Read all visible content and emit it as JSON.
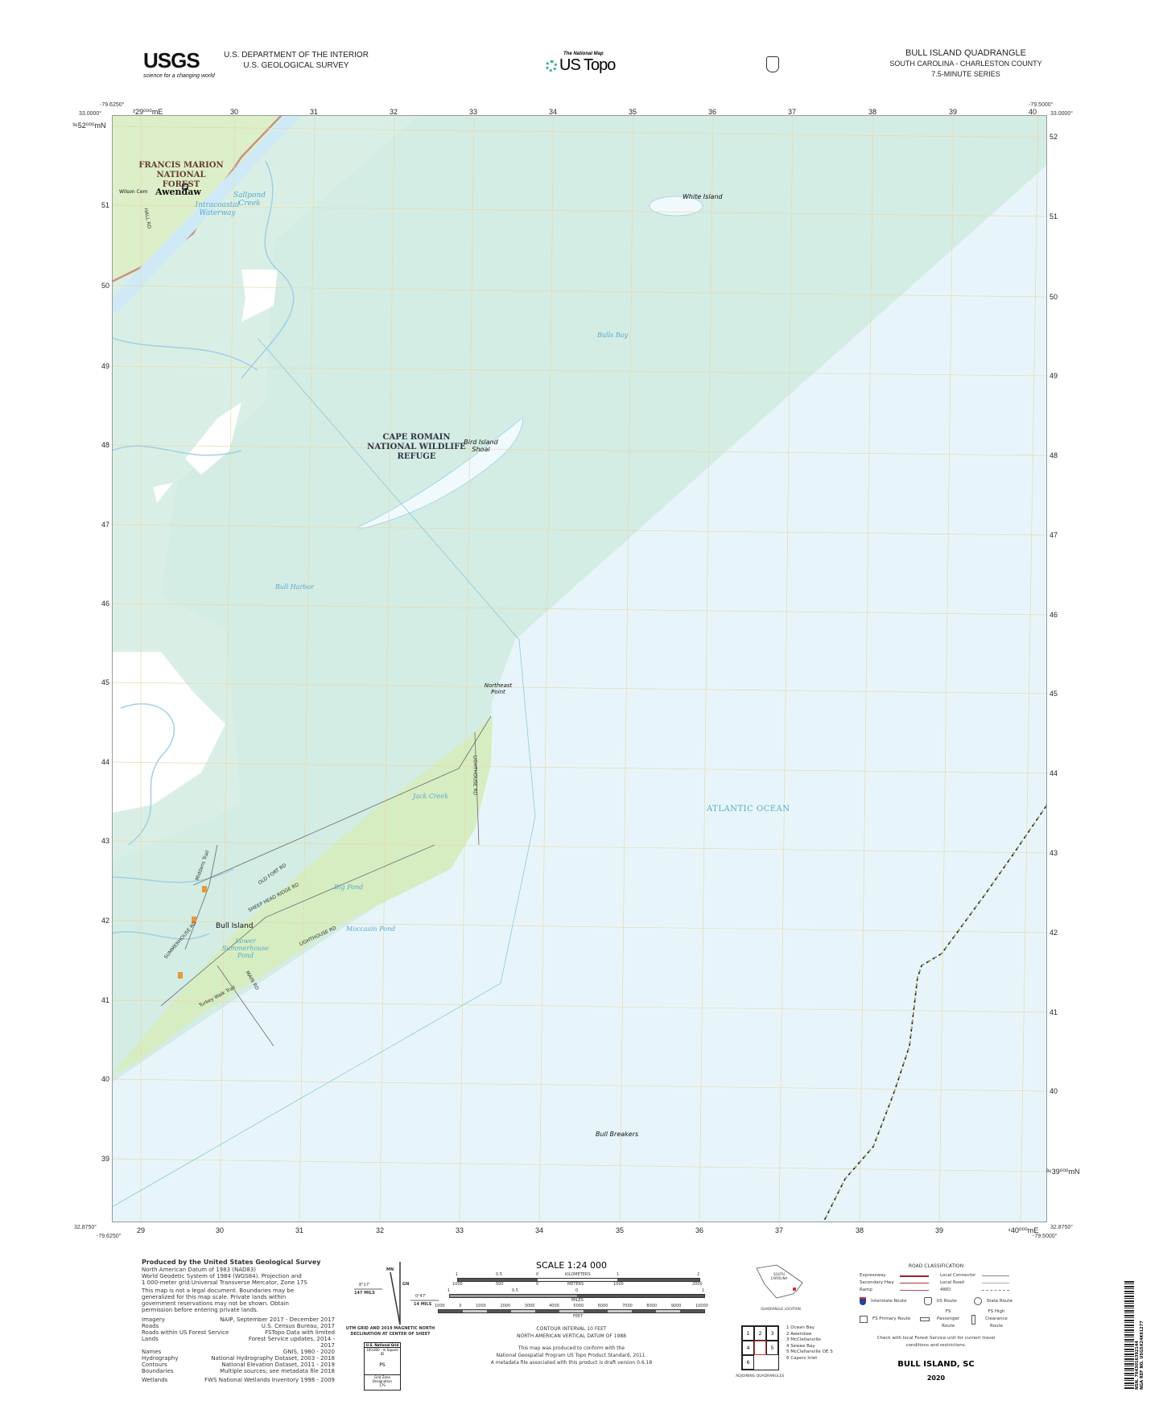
{
  "header": {
    "usgs_logo_text": "USGS",
    "usgs_tagline": "science for a changing world",
    "agency_line1": "U.S. DEPARTMENT OF THE INTERIOR",
    "agency_line2": "U.S. GEOLOGICAL SURVEY",
    "national_map": "The National Map",
    "us_topo": "US Topo",
    "quad_title": "BULL ISLAND QUADRANGLE",
    "state_county": "SOUTH CAROLINA - CHARLESTON COUNTY",
    "series": "7.5-MINUTE SERIES"
  },
  "corners": {
    "nw_lon": "-79.6250°",
    "nw_lat": "33.0000°",
    "ne_lon": "-79.5000°",
    "ne_lat": "33.0000°",
    "sw_lat": "32.8750°",
    "sw_lon": "-79.6250°",
    "se_lat": "32.8750°",
    "se_lon": "-79.5000°"
  },
  "grid": {
    "top_eastings": [
      "²29⁰⁰⁰mE",
      "30",
      "31",
      "32",
      "33",
      "34",
      "35",
      "36",
      "37",
      "38",
      "39",
      "40"
    ],
    "bottom_eastings": [
      "29",
      "30",
      "31",
      "32",
      "33",
      "34",
      "35",
      "36",
      "37",
      "38",
      "39",
      "⁴40⁰⁰⁰mE"
    ],
    "left_northings": [
      "³⁶52⁰⁰⁰mN",
      "51",
      "50",
      "49",
      "48",
      "47",
      "46",
      "45",
      "44",
      "43",
      "42",
      "41",
      "40",
      "39"
    ],
    "right_northings": [
      "52",
      "51",
      "50",
      "49",
      "48",
      "47",
      "46",
      "45",
      "44",
      "43",
      "42",
      "41",
      "40",
      "³⁶39⁰⁰⁰mN"
    ]
  },
  "map_labels": {
    "forest": "FRANCIS MARION NATIONAL FOREST",
    "awendaw": "Awendaw",
    "wilson_cem": "Wilson Cem",
    "hall_rd": "HALL RD",
    "intracoastal": "Intracoastal Waterway",
    "sallpond": "Sallpond Creek",
    "white_island": "White Island",
    "bulls_bay": "Bulls Bay",
    "refuge": "CAPE ROMAIN NATIONAL WILDLIFE REFUGE",
    "bird_shoal": "Bird Island Shoal",
    "bull_harbor": "Bull Harbor",
    "northeast_point": "Northeast Point",
    "atlantic": "ATLANTIC OCEAN",
    "jack_creek": "Jack Creek",
    "lighthouse_rd": "LIGHTHOUSE RD",
    "old_fort_rd": "OLD FORT RD",
    "sheep_head_rd": "SHEEP HEAD RIDGE RD",
    "middens_trail": "Middens Trail",
    "big_pond": "Big Pond",
    "bull_island": "Bull Island",
    "lower_summerhouse": "Lower Summerhouse Pond",
    "moccasin_pond": "Moccasin Pond",
    "summerhouse_rd": "SUMMERHOUSE RD",
    "main_rd": "MAIN RD",
    "turkey_walk": "Turkey Walk Trail",
    "bull_breakers": "Bull Breakers"
  },
  "footer": {
    "produced_by": "Produced by the United States Geological Survey",
    "datum_lines": [
      "North American Datum of 1983 (NAD83)",
      "World Geodetic System of 1984 (WGS84). Projection and",
      "1 000-meter grid:Universal Transverse Mercator, Zone 17S"
    ],
    "disclaimer": "This map is not a legal document. Boundaries may be generalized for this map scale. Private lands within government reservations may not be shown. Obtain permission before entering private lands.",
    "credits": [
      {
        "k": "Imagery",
        "v": "NAIP, September 2017 - December 2017"
      },
      {
        "k": "Roads",
        "v": "U.S. Census Bureau, 2017"
      },
      {
        "k": "Roads within US Forest Service Lands",
        "v": "FSTopo Data with limited Forest Service updates, 2014 - 2017"
      },
      {
        "k": "Names",
        "v": "GNIS, 1980 - 2020"
      },
      {
        "k": "Hydrography",
        "v": "National Hydrography Dataset, 2003 - 2018"
      },
      {
        "k": "Contours",
        "v": "National Elevation Dataset, 2011 - 2019"
      },
      {
        "k": "Boundaries",
        "v": "Multiple sources; see metadata file 2018"
      },
      {
        "k": "Wetlands",
        "v": "FWS National Wetlands Inventory 1998 - 2009"
      }
    ],
    "declination": {
      "mn": "MN",
      "gn": "GN",
      "left_angle": "8°17'",
      "left_mils": "147 MILS",
      "right_angle": "0°47'",
      "right_mils": "14 MILS",
      "caption": "UTM GRID AND 2019 MAGNETIC NORTH DECLINATION AT CENTER OF SHEET"
    },
    "usng": {
      "title": "U.S. National Grid",
      "sub": "100,000 - m Square ID",
      "id": "PS",
      "gzd_label": "Grid Zone Designation",
      "gzd": "17S"
    },
    "scale": {
      "title": "SCALE 1:24 000",
      "km_ticks": [
        "1",
        "0.5",
        "0",
        "KILOMETERS",
        "1",
        "2"
      ],
      "m_ticks": [
        "1000",
        "500",
        "0",
        "METERS",
        "1000",
        "2000"
      ],
      "mi_ticks": [
        "1",
        "0.5",
        "0",
        "1"
      ],
      "mi_label": "MILES",
      "ft_ticks": [
        "1000",
        "0",
        "1000",
        "2000",
        "3000",
        "4000",
        "5000",
        "6000",
        "7000",
        "8000",
        "9000",
        "10000"
      ],
      "ft_label": "FEET"
    },
    "contour": "CONTOUR INTERVAL 10 FEET",
    "vdatum": "NORTH AMERICAN VERTICAL DATUM OF 1988",
    "standard_lines": [
      "This map was produced to conform with the",
      "National Geospatial Program US Topo Product Standard, 2011.",
      "A metadata file associated with this product is draft version 0.6.18"
    ],
    "location": {
      "state": "SOUTH CAROLINA",
      "caption": "QUADRANGLE LOCATION"
    },
    "adjoining": {
      "cells": [
        "1",
        "2",
        "3",
        "4",
        "",
        "5",
        "6"
      ],
      "names": [
        "1 Ocean Bay",
        "2 Awendaw",
        "3 McClellanville",
        "4 Sewee Bay",
        "5 McClellanville OE S",
        "6 Capers Inlet"
      ],
      "caption": "ADJOINING QUADRANGLES"
    },
    "roads": {
      "title": "ROAD CLASSIFICATION",
      "left": [
        "Expressway",
        "Secondary Hwy",
        "Ramp"
      ],
      "right": [
        "Local Connector",
        "Local Road",
        "4WD"
      ],
      "shields": [
        "Interstate Route",
        "US Route",
        "State Route"
      ],
      "fs": [
        "FS Primary Route",
        "FS Passenger Route",
        "FS High Clearance Route"
      ],
      "note": "Check with local Forest Service unit for current travel conditions and restrictions."
    },
    "sheet_name": "BULL ISLAND, SC",
    "year": "2020",
    "barcode": {
      "nsn": "NSN. 7643016392144",
      "nga": "NGA REF NO. USGSX24K61277"
    }
  },
  "colors": {
    "ocean": "#e7f5fb",
    "refuge_tint": "#d3ece4",
    "land": "#d7edc3",
    "marsh": "#d8eee4",
    "forest_boundary": "#c9918a",
    "grid": "#e8d9a8",
    "water_text": "#5aa9c9",
    "county_line": "#222222"
  }
}
